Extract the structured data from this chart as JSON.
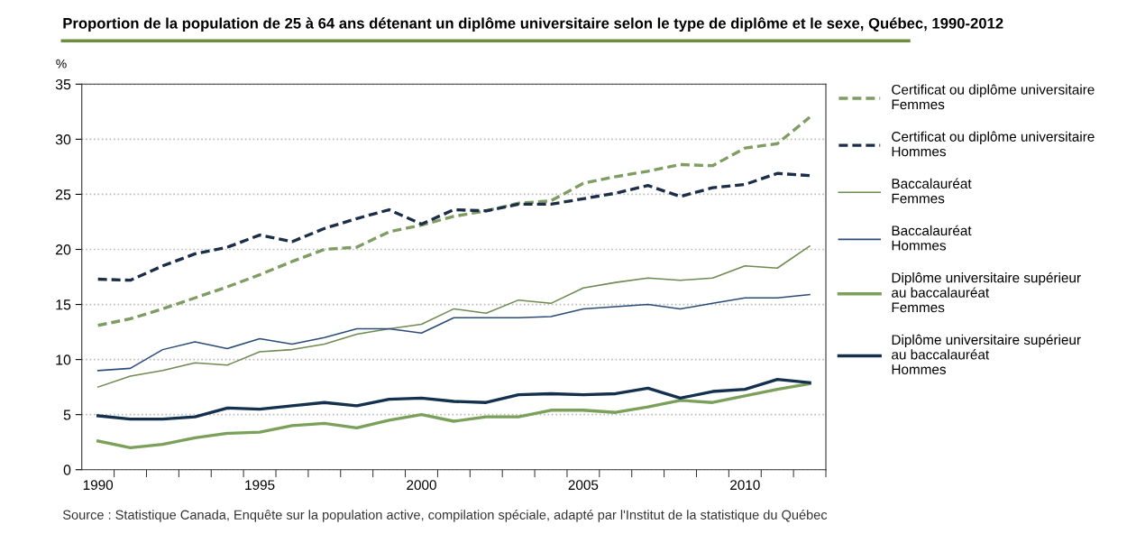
{
  "chart_data": {
    "type": "line",
    "title": "Proportion de la population de 25 à 64 ans détenant un diplôme universitaire selon le type de diplôme et le sexe, Québec, 1990-2012",
    "ylabel": "%",
    "categories": [
      "1990",
      null,
      null,
      null,
      null,
      "1995",
      null,
      null,
      null,
      null,
      "2000",
      null,
      null,
      null,
      null,
      "2005",
      null,
      null,
      null,
      null,
      "2010",
      null,
      null
    ],
    "ylim": [
      0,
      35
    ],
    "yticks": [
      0,
      5,
      10,
      15,
      20,
      25,
      30,
      35
    ],
    "grid": "y",
    "legend": "right",
    "series": [
      {
        "name": "Certificat ou diplôme universitaire\nFemmes",
        "color": "#7f9c62",
        "line_style": "dashed",
        "values": [
          13.1,
          13.7,
          14.6,
          15.6,
          16.6,
          17.7,
          18.9,
          20.0,
          20.2,
          21.6,
          22.2,
          23.0,
          23.5,
          24.2,
          24.4,
          26.0,
          26.6,
          27.1,
          27.7,
          27.6,
          29.2,
          29.6,
          32.0
        ]
      },
      {
        "name": "Certificat ou diplôme universitaire\nHommes",
        "color": "#1b2d47",
        "line_style": "dashed",
        "values": [
          17.3,
          17.2,
          18.5,
          19.6,
          20.2,
          21.3,
          20.7,
          21.9,
          22.8,
          23.6,
          22.3,
          23.6,
          23.5,
          24.1,
          24.1,
          24.6,
          25.1,
          25.8,
          24.8,
          25.6,
          25.9,
          26.9,
          26.7
        ]
      },
      {
        "name": "Baccalauréat\nFemmes",
        "color": "#6f8a52",
        "line_style": "solid",
        "values": [
          7.5,
          8.5,
          9.0,
          9.7,
          9.5,
          10.7,
          10.9,
          11.4,
          12.3,
          12.8,
          13.2,
          14.6,
          14.2,
          15.4,
          15.1,
          16.5,
          17.0,
          17.4,
          17.2,
          17.4,
          18.5,
          18.3,
          20.3
        ]
      },
      {
        "name": "Baccalauréat\nHommes",
        "color": "#2a4d78",
        "line_style": "solid",
        "values": [
          9.0,
          9.2,
          10.9,
          11.6,
          11.0,
          11.9,
          11.4,
          12.0,
          12.8,
          12.8,
          12.4,
          13.8,
          13.8,
          13.8,
          13.9,
          14.6,
          14.8,
          15.0,
          14.6,
          15.1,
          15.6,
          15.6,
          15.9
        ]
      },
      {
        "name": "Diplôme universitaire supérieur\nau baccalauréat\nFemmes",
        "color": "#7aa05a",
        "line_style": "solid",
        "values": [
          2.6,
          2.0,
          2.3,
          2.9,
          3.3,
          3.4,
          4.0,
          4.2,
          3.8,
          4.5,
          5.0,
          4.4,
          4.8,
          4.8,
          5.4,
          5.4,
          5.2,
          5.7,
          6.3,
          6.1,
          6.7,
          7.3,
          7.8
        ]
      },
      {
        "name": "Diplôme universitaire supérieur\nau baccalauréat\nHommes",
        "color": "#14304f",
        "line_style": "solid",
        "values": [
          4.9,
          4.6,
          4.6,
          4.8,
          5.6,
          5.5,
          5.8,
          6.1,
          5.8,
          6.4,
          6.5,
          6.2,
          6.1,
          6.8,
          6.9,
          6.8,
          6.9,
          7.4,
          6.5,
          7.1,
          7.3,
          8.2,
          7.9
        ]
      }
    ],
    "annotations": [
      "Source : Statistique Canada, Enquête sur la population active, compilation spéciale, adapté par l'Institut de la statistique du Québec"
    ]
  }
}
